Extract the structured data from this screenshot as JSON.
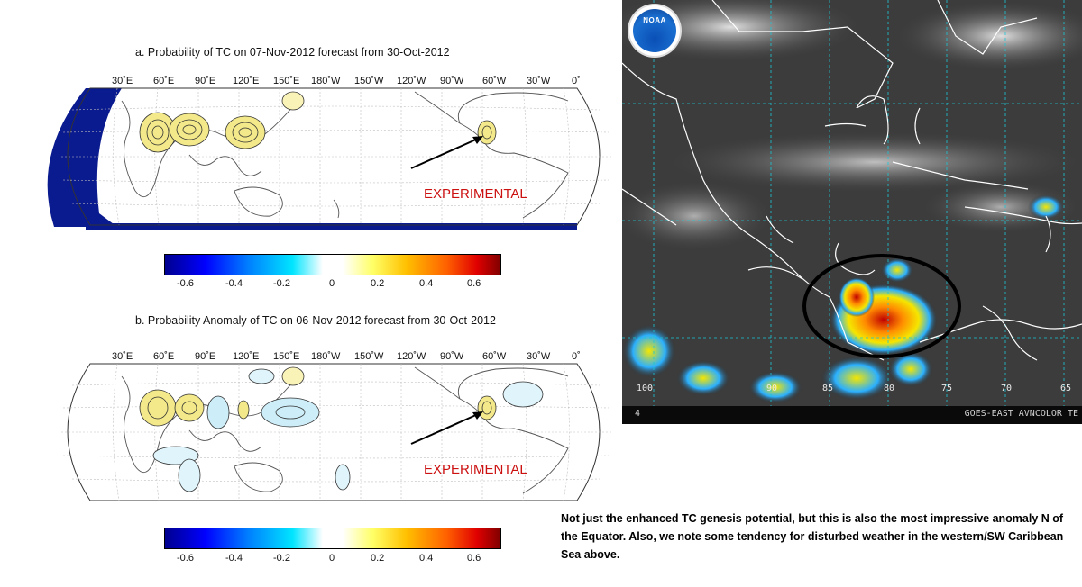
{
  "panel_a": {
    "title": "a. Probability of TC on 07-Nov-2012 forecast from 30-Oct-2012",
    "longitudes": [
      "30˚E",
      "60˚E",
      "90˚E",
      "120˚E",
      "150˚E",
      "180˚W",
      "150˚W",
      "120˚W",
      "90˚W",
      "60˚W",
      "30˚W",
      "0˚"
    ],
    "experimental": "EXPERIMENTAL"
  },
  "panel_b": {
    "title": "b. Probability Anomaly of TC on 06-Nov-2012 forecast from 30-Oct-2012",
    "longitudes": [
      "30˚E",
      "60˚E",
      "90˚E",
      "120˚E",
      "150˚E",
      "180˚W",
      "150˚W",
      "120˚W",
      "90˚W",
      "60˚W",
      "30˚W",
      "0˚"
    ],
    "experimental": "EXPERIMENTAL"
  },
  "colorbar": {
    "ticks": [
      "-0.6",
      "-0.4",
      "-0.2",
      "0",
      "0.2",
      "0.4",
      "0.6"
    ],
    "range": [
      -0.7,
      0.7
    ]
  },
  "satellite": {
    "logo_text": "NOAA",
    "lat_lon_labels": [
      "100",
      "90",
      "85",
      "80",
      "75",
      "70",
      "65"
    ],
    "footer_left": "4",
    "footer_right": "GOES-EAST AVNCOLOR TE"
  },
  "caption": "Not just the enhanced TC genesis potential, but this is also the most impressive anomaly N of the Equator.   Also, we note some tendency for disturbed weather in the western/SW Caribbean Sea above."
}
